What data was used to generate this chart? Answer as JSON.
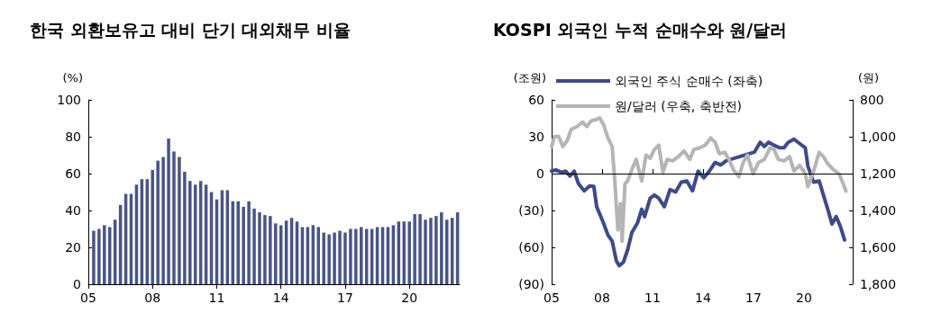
{
  "chart_data": [
    {
      "type": "bar",
      "title": "한국 외환보유고 대비 단기 대외채무 비율",
      "ylabel": "(%)",
      "color": "#4a5584",
      "x": [
        2005.25,
        2005.5,
        2005.75,
        2006,
        2006.25,
        2006.5,
        2006.75,
        2007,
        2007.25,
        2007.5,
        2007.75,
        2008,
        2008.25,
        2008.5,
        2008.75,
        2009,
        2009.25,
        2009.5,
        2009.75,
        2010,
        2010.25,
        2010.5,
        2010.75,
        2011,
        2011.25,
        2011.5,
        2011.75,
        2012,
        2012.25,
        2012.5,
        2012.75,
        2013,
        2013.25,
        2013.5,
        2013.75,
        2014,
        2014.25,
        2014.5,
        2014.75,
        2015,
        2015.25,
        2015.5,
        2015.75,
        2016,
        2016.25,
        2016.5,
        2016.75,
        2017,
        2017.25,
        2017.5,
        2017.75,
        2018,
        2018.25,
        2018.5,
        2018.75,
        2019,
        2019.25,
        2019.5,
        2019.75,
        2020,
        2020.25,
        2020.5,
        2020.75,
        2021,
        2021.25,
        2021.5,
        2021.75,
        2022,
        2022.25
      ],
      "values": [
        29,
        30,
        32,
        31,
        35,
        43,
        49,
        49,
        54,
        57,
        57,
        62,
        67,
        69,
        79,
        72,
        69,
        61,
        56,
        54,
        56,
        54,
        50,
        46,
        51,
        51,
        45,
        45,
        42,
        45,
        41,
        39,
        37.5,
        37,
        33,
        32,
        34.5,
        36,
        34,
        31,
        31,
        32,
        31,
        28,
        27,
        28,
        29,
        28,
        30,
        30,
        31,
        30,
        30,
        31,
        31,
        31,
        32,
        34,
        34,
        34,
        38,
        38,
        35,
        36,
        37,
        39,
        35,
        36,
        39
      ],
      "xlim": [
        2005,
        2022.35
      ],
      "xticks": [
        {
          "value": 2005,
          "label": "05"
        },
        {
          "value": 2008,
          "label": "08"
        },
        {
          "value": 2011,
          "label": "11"
        },
        {
          "value": 2014,
          "label": "14"
        },
        {
          "value": 2017,
          "label": "17"
        },
        {
          "value": 2020,
          "label": "20"
        }
      ],
      "ylim": [
        0,
        100
      ],
      "yticks": [
        0,
        20,
        40,
        60,
        80,
        100
      ],
      "grid": false,
      "legend": false
    },
    {
      "type": "line",
      "title": "KOSPI 외국인 누적 순매수와 원/달러",
      "ylabel": "(조원)",
      "y2label": "(원)",
      "legend": "top left",
      "ref_lines": [
        {
          "axis": "y",
          "value": 0,
          "color": "#000000"
        }
      ],
      "line_style": "solid",
      "marker": "none",
      "series": [
        {
          "name": "외국인 주식 순매수 (좌축)",
          "color": "#3f4a88",
          "x": [
            2005,
            2005.25,
            2005.59,
            2005.84,
            2006.09,
            2006.34,
            2006.59,
            2006.93,
            2007.26,
            2007.51,
            2007.68,
            2008.02,
            2008.35,
            2008.6,
            2008.85,
            2009.02,
            2009.27,
            2009.52,
            2009.77,
            2010.11,
            2010.36,
            2010.53,
            2010.86,
            2011.11,
            2011.37,
            2011.7,
            2012.04,
            2012.37,
            2012.71,
            2013.04,
            2013.38,
            2013.71,
            2014.05,
            2014.38,
            2014.72,
            2015.05,
            2015.39,
            2017.06,
            2017.4,
            2017.65,
            2017.9,
            2018.23,
            2018.57,
            2018.82,
            2019.07,
            2019.41,
            2019.74,
            2020.08,
            2020.24,
            2020.58,
            2020.91,
            2021.16,
            2021.42,
            2021.67,
            2021.92,
            2022.17,
            2022.42
          ],
          "values": [
            2,
            3,
            1,
            2,
            -2,
            2,
            -8,
            -14,
            -10,
            -10.5,
            -27,
            -38,
            -50,
            -55,
            -71,
            -75,
            -72,
            -62,
            -48,
            -40,
            -29,
            -35,
            -20,
            -17.5,
            -20,
            -27,
            -13,
            -15,
            -7,
            -6,
            -14,
            2,
            -3.5,
            2,
            9,
            7,
            10.5,
            17.5,
            25.5,
            22,
            25.5,
            23,
            21,
            21,
            25.5,
            28,
            24.5,
            21,
            6,
            -7,
            -6,
            -17.5,
            -29,
            -41,
            -35,
            -43,
            -54
          ]
        },
        {
          "name": "원/달러 (우축, 축반전)",
          "color": "#b5b5b5",
          "axis": "y2",
          "x": [
            2005,
            2005.17,
            2005.42,
            2005.67,
            2005.92,
            2006.17,
            2006.51,
            2006.84,
            2007.09,
            2007.35,
            2007.68,
            2007.85,
            2008.1,
            2008.35,
            2008.6,
            2008.77,
            2008.94,
            2009.1,
            2009.19,
            2009.36,
            2009.52,
            2009.77,
            2010.03,
            2010.36,
            2010.61,
            2010.86,
            2011.11,
            2011.37,
            2011.62,
            2011.87,
            2012.2,
            2012.54,
            2012.87,
            2013.21,
            2013.46,
            2013.79,
            2014.13,
            2014.46,
            2014.72,
            2014.97,
            2015.3,
            2015.55,
            2015.8,
            2016.14,
            2016.39,
            2016.64,
            2016.98,
            2017.31,
            2017.65,
            2017.98,
            2018.23,
            2018.48,
            2018.82,
            2019.15,
            2019.41,
            2019.74,
            2020.08,
            2020.24,
            2020.58,
            2020.91,
            2021.16,
            2021.42,
            2021.75,
            2022.09,
            2022.34,
            2022.5
          ],
          "values": [
            1053,
            999,
            999,
            1053,
            1022,
            960,
            945,
            921,
            945,
            914,
            906,
            898,
            937,
            1007,
            1053,
            1256,
            1505,
            1364,
            1567,
            1256,
            1240,
            1178,
            1123,
            1240,
            1100,
            1116,
            1069,
            1046,
            1193,
            1123,
            1131,
            1108,
            1077,
            1123,
            1069,
            1061,
            1046,
            1007,
            1030,
            1092,
            1085,
            1123,
            1178,
            1217,
            1139,
            1100,
            1201,
            1139,
            1123,
            1061,
            1069,
            1123,
            1131,
            1108,
            1186,
            1155,
            1201,
            1271,
            1186,
            1085,
            1108,
            1147,
            1178,
            1201,
            1256,
            1295
          ]
        }
      ],
      "xlim": [
        2005,
        2022.9
      ],
      "xticks": [
        {
          "value": 2005,
          "label": "05"
        },
        {
          "value": 2008,
          "label": "08"
        },
        {
          "value": 2011,
          "label": "11"
        },
        {
          "value": 2014,
          "label": "14"
        },
        {
          "value": 2017,
          "label": "17"
        },
        {
          "value": 2020,
          "label": "20"
        }
      ],
      "ylim": [
        -90,
        60
      ],
      "yticks": [
        {
          "value": -90,
          "label": "(90)"
        },
        {
          "value": -60,
          "label": "(60)"
        },
        {
          "value": -30,
          "label": "(30)"
        },
        0,
        30,
        60
      ],
      "y2lim": [
        1800,
        800
      ],
      "y2ticks": [
        800,
        {
          "value": 1000,
          "label": "1,000"
        },
        {
          "value": 1200,
          "label": "1,200"
        },
        {
          "value": 1400,
          "label": "1,400"
        },
        {
          "value": 1600,
          "label": "1,600"
        },
        {
          "value": 1800,
          "label": "1,800"
        }
      ]
    }
  ]
}
